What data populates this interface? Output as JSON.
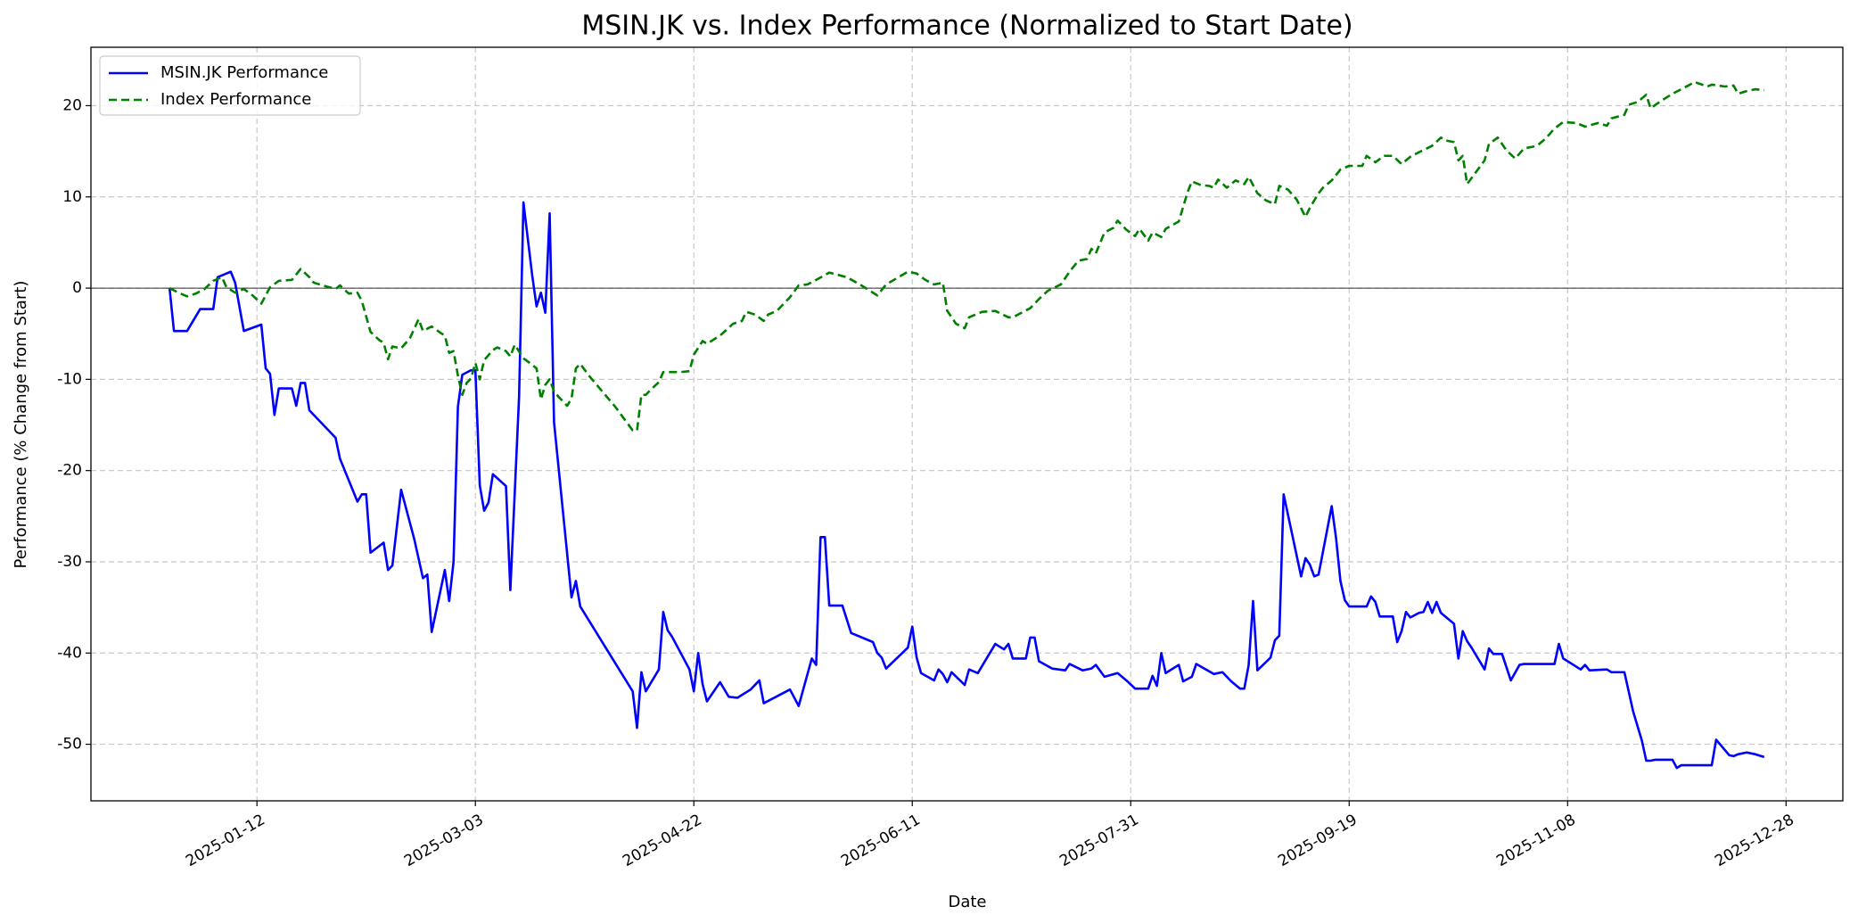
{
  "chart_data": {
    "type": "line",
    "title": "MSIN.JK vs. Index Performance (Normalized to Start Date)",
    "xlabel": "Date",
    "ylabel": "Performance (% Change from Start)",
    "xlim": [
      "2024-12-05",
      "2026-01-10"
    ],
    "xticks": [
      "2025-01-12",
      "2025-03-03",
      "2025-04-22",
      "2025-06-11",
      "2025-07-31",
      "2025-09-19",
      "2025-11-08",
      "2025-12-28"
    ],
    "ylim": [
      -56.2,
      26.4
    ],
    "yticks": [
      -50,
      -40,
      -30,
      -20,
      -10,
      0,
      10,
      20
    ],
    "grid": true,
    "hline": 0,
    "legend": "upper left",
    "series": [
      {
        "name": "MSIN.JK Performance",
        "color": "#0000ff",
        "linestyle": "solid",
        "x": [
          "2024-12-23",
          "2024-12-24",
          "2024-12-27",
          "2024-12-30",
          "2025-01-02",
          "2025-01-03",
          "2025-01-06",
          "2025-01-07",
          "2025-01-09",
          "2025-01-13",
          "2025-01-14",
          "2025-01-15",
          "2025-01-16",
          "2025-01-17",
          "2025-01-20",
          "2025-01-21",
          "2025-01-22",
          "2025-01-23",
          "2025-01-24",
          "2025-01-30",
          "2025-01-31",
          "2025-02-04",
          "2025-02-05",
          "2025-02-06",
          "2025-02-07",
          "2025-02-10",
          "2025-02-11",
          "2025-02-12",
          "2025-02-14",
          "2025-02-17",
          "2025-02-19",
          "2025-02-20",
          "2025-02-21",
          "2025-02-24",
          "2025-02-25",
          "2025-02-26",
          "2025-02-27",
          "2025-02-28",
          "2025-03-02",
          "2025-03-03",
          "2025-03-04",
          "2025-03-05",
          "2025-03-06",
          "2025-03-07",
          "2025-03-10",
          "2025-03-11",
          "2025-03-13",
          "2025-03-14",
          "2025-03-16",
          "2025-03-17",
          "2025-03-18",
          "2025-03-19",
          "2025-03-20",
          "2025-03-21",
          "2025-03-25",
          "2025-03-26",
          "2025-03-27",
          "2025-04-08",
          "2025-04-09",
          "2025-04-10",
          "2025-04-11",
          "2025-04-14",
          "2025-04-15",
          "2025-04-16",
          "2025-04-17",
          "2025-04-21",
          "2025-04-22",
          "2025-04-23",
          "2025-04-24",
          "2025-04-25",
          "2025-04-28",
          "2025-04-30",
          "2025-05-02",
          "2025-05-05",
          "2025-05-07",
          "2025-05-08",
          "2025-05-14",
          "2025-05-16",
          "2025-05-19",
          "2025-05-20",
          "2025-05-21",
          "2025-05-22",
          "2025-05-23",
          "2025-05-26",
          "2025-05-28",
          "2025-06-02",
          "2025-06-03",
          "2025-06-04",
          "2025-06-05",
          "2025-06-10",
          "2025-06-11",
          "2025-06-12",
          "2025-06-13",
          "2025-06-16",
          "2025-06-17",
          "2025-06-18",
          "2025-06-19",
          "2025-06-20",
          "2025-06-23",
          "2025-06-24",
          "2025-06-26",
          "2025-06-30",
          "2025-07-02",
          "2025-07-03",
          "2025-07-04",
          "2025-07-07",
          "2025-07-08",
          "2025-07-09",
          "2025-07-10",
          "2025-07-13",
          "2025-07-16",
          "2025-07-17",
          "2025-07-20",
          "2025-07-22",
          "2025-07-23",
          "2025-07-25",
          "2025-07-28",
          "2025-07-30",
          "2025-08-01",
          "2025-08-04",
          "2025-08-05",
          "2025-08-06",
          "2025-08-07",
          "2025-08-08",
          "2025-08-11",
          "2025-08-12",
          "2025-08-14",
          "2025-08-15",
          "2025-08-19",
          "2025-08-21",
          "2025-08-23",
          "2025-08-25",
          "2025-08-26",
          "2025-08-27",
          "2025-08-28",
          "2025-08-29",
          "2025-09-01",
          "2025-09-02",
          "2025-09-03",
          "2025-09-04",
          "2025-09-08",
          "2025-09-09",
          "2025-09-10",
          "2025-09-11",
          "2025-09-12",
          "2025-09-15",
          "2025-09-16",
          "2025-09-17",
          "2025-09-18",
          "2025-09-19",
          "2025-09-23",
          "2025-09-24",
          "2025-09-25",
          "2025-09-26",
          "2025-09-29",
          "2025-09-30",
          "2025-10-01",
          "2025-10-02",
          "2025-10-03",
          "2025-10-05",
          "2025-10-06",
          "2025-10-07",
          "2025-10-08",
          "2025-10-09",
          "2025-10-10",
          "2025-10-13",
          "2025-10-14",
          "2025-10-15",
          "2025-10-16",
          "2025-10-17",
          "2025-10-20",
          "2025-10-21",
          "2025-10-22",
          "2025-10-24",
          "2025-10-26",
          "2025-10-28",
          "2025-10-29",
          "2025-11-05",
          "2025-11-06",
          "2025-11-07",
          "2025-11-11",
          "2025-11-12",
          "2025-11-13",
          "2025-11-17",
          "2025-11-18",
          "2025-11-21",
          "2025-11-23",
          "2025-11-25",
          "2025-11-26",
          "2025-11-27",
          "2025-11-28",
          "2025-12-02",
          "2025-12-03",
          "2025-12-04",
          "2025-12-11",
          "2025-12-12",
          "2025-12-15",
          "2025-12-16",
          "2025-12-17",
          "2025-12-19",
          "2025-12-21",
          "2025-12-23"
        ],
        "values": [
          0,
          -4.7,
          -4.7,
          -2.3,
          -2.3,
          1.2,
          1.8,
          0.6,
          -4.7,
          -4.0,
          -8.8,
          -9.4,
          -13.9,
          -11.0,
          -11.0,
          -12.9,
          -10.4,
          -10.4,
          -13.4,
          -16.4,
          -18.7,
          -23.4,
          -22.6,
          -22.6,
          -29.0,
          -27.9,
          -30.9,
          -30.4,
          -22.1,
          -27.5,
          -31.8,
          -31.4,
          -37.7,
          -30.9,
          -34.3,
          -30.0,
          -13.0,
          -9.5,
          -9.0,
          -9.0,
          -21.6,
          -24.4,
          -23.5,
          -20.4,
          -21.7,
          -33.1,
          -11.9,
          9.4,
          1.4,
          -2.0,
          -0.5,
          -2.7,
          8.2,
          -14.7,
          -33.9,
          -32.1,
          -34.9,
          -44.2,
          -48.2,
          -42.1,
          -44.2,
          -41.8,
          -35.5,
          -37.5,
          -38.2,
          -41.8,
          -44.2,
          -40.0,
          -43.4,
          -45.3,
          -43.2,
          -44.8,
          -44.9,
          -44.0,
          -43.0,
          -45.5,
          -44.0,
          -45.8,
          -40.6,
          -41.3,
          -27.3,
          -27.3,
          -34.8,
          -34.8,
          -37.8,
          -38.8,
          -40.0,
          -40.5,
          -41.7,
          -39.4,
          -37.1,
          -40.5,
          -42.2,
          -43.0,
          -41.8,
          -42.3,
          -43.2,
          -42.1,
          -43.5,
          -41.8,
          -42.2,
          -39.0,
          -39.6,
          -39.0,
          -40.6,
          -40.6,
          -38.3,
          -38.3,
          -40.9,
          -41.7,
          -41.9,
          -41.2,
          -41.9,
          -41.7,
          -41.3,
          -42.6,
          -42.2,
          -43.0,
          -43.9,
          -43.9,
          -42.5,
          -43.6,
          -40.0,
          -42.2,
          -41.3,
          -43.1,
          -42.6,
          -41.2,
          -42.3,
          -42.1,
          -43.1,
          -43.9,
          -43.9,
          -41.3,
          -34.3,
          -41.9,
          -40.5,
          -38.6,
          -38.1,
          -22.6,
          -31.6,
          -29.6,
          -30.3,
          -31.6,
          -31.4,
          -23.9,
          -27.4,
          -32.1,
          -34.2,
          -34.9,
          -34.9,
          -33.8,
          -34.4,
          -36.0,
          -36.0,
          -38.8,
          -37.6,
          -35.5,
          -36.1,
          -35.6,
          -35.5,
          -34.4,
          -35.6,
          -34.4,
          -35.6,
          -36.8,
          -40.6,
          -37.6,
          -38.7,
          -39.4,
          -41.8,
          -39.5,
          -40.1,
          -40.1,
          -43.0,
          -41.3,
          -41.2,
          -41.2,
          -39.0,
          -40.6,
          -41.8,
          -41.3,
          -41.9,
          -41.8,
          -42.1,
          -42.1,
          -46.4,
          -49.6,
          -51.8,
          -51.8,
          -51.7,
          -51.7,
          -52.6,
          -52.3,
          -52.3,
          -49.5,
          -51.2,
          -51.3,
          -51.1,
          -50.9,
          -51.1,
          -51.4
        ]
      },
      {
        "name": "Index Performance",
        "color": "#008000",
        "linestyle": "dashed",
        "x": [
          "2024-12-23",
          "2024-12-25",
          "2024-12-27",
          "2024-12-29",
          "2024-12-31",
          "2025-01-02",
          "2025-01-04",
          "2025-01-05",
          "2025-01-07",
          "2025-01-09",
          "2025-01-11",
          "2025-01-13",
          "2025-01-15",
          "2025-01-17",
          "2025-01-20",
          "2025-01-22",
          "2025-01-24",
          "2025-01-25",
          "2025-01-27",
          "2025-01-30",
          "2025-01-31",
          "2025-02-02",
          "2025-02-04",
          "2025-02-05",
          "2025-02-07",
          "2025-02-09",
          "2025-02-10",
          "2025-02-11",
          "2025-02-12",
          "2025-02-14",
          "2025-02-16",
          "2025-02-18",
          "2025-02-19",
          "2025-02-21",
          "2025-02-23",
          "2025-02-24",
          "2025-02-25",
          "2025-02-26",
          "2025-02-27",
          "2025-02-28",
          "2025-03-01",
          "2025-03-02",
          "2025-03-03",
          "2025-03-04",
          "2025-03-05",
          "2025-03-07",
          "2025-03-08",
          "2025-03-10",
          "2025-03-11",
          "2025-03-12",
          "2025-03-14",
          "2025-03-16",
          "2025-03-17",
          "2025-03-18",
          "2025-03-19",
          "2025-03-20",
          "2025-03-21",
          "2025-03-22",
          "2025-03-24",
          "2025-03-25",
          "2025-03-26",
          "2025-03-27",
          "2025-03-29",
          "2025-04-04",
          "2025-04-08",
          "2025-04-09",
          "2025-04-10",
          "2025-04-11",
          "2025-04-12",
          "2025-04-14",
          "2025-04-15",
          "2025-04-17",
          "2025-04-19",
          "2025-04-21",
          "2025-04-22",
          "2025-04-24",
          "2025-04-25",
          "2025-04-28",
          "2025-05-01",
          "2025-05-03",
          "2025-05-04",
          "2025-05-06",
          "2025-05-08",
          "2025-05-09",
          "2025-05-11",
          "2025-05-14",
          "2025-05-16",
          "2025-05-18",
          "2025-05-20",
          "2025-05-23",
          "2025-05-27",
          "2025-05-30",
          "2025-06-03",
          "2025-06-05",
          "2025-06-10",
          "2025-06-12",
          "2025-06-14",
          "2025-06-16",
          "2025-06-18",
          "2025-06-19",
          "2025-06-21",
          "2025-06-23",
          "2025-06-24",
          "2025-06-27",
          "2025-06-30",
          "2025-07-03",
          "2025-07-04",
          "2025-07-08",
          "2025-07-10",
          "2025-07-12",
          "2025-07-15",
          "2025-07-17",
          "2025-07-19",
          "2025-07-21",
          "2025-07-22",
          "2025-07-23",
          "2025-07-25",
          "2025-07-27",
          "2025-07-28",
          "2025-07-30",
          "2025-08-01",
          "2025-08-02",
          "2025-08-04",
          "2025-08-05",
          "2025-08-07",
          "2025-08-08",
          "2025-08-11",
          "2025-08-13",
          "2025-08-14",
          "2025-08-16",
          "2025-08-18",
          "2025-08-19",
          "2025-08-20",
          "2025-08-22",
          "2025-08-24",
          "2025-08-26",
          "2025-08-27",
          "2025-08-29",
          "2025-08-31",
          "2025-09-02",
          "2025-09-03",
          "2025-09-05",
          "2025-09-07",
          "2025-09-09",
          "2025-09-10",
          "2025-09-12",
          "2025-09-13",
          "2025-09-15",
          "2025-09-17",
          "2025-09-19",
          "2025-09-21",
          "2025-09-22",
          "2025-09-23",
          "2025-09-25",
          "2025-09-27",
          "2025-09-29",
          "2025-10-01",
          "2025-10-03",
          "2025-10-05",
          "2025-10-08",
          "2025-10-10",
          "2025-10-11",
          "2025-10-13",
          "2025-10-14",
          "2025-10-15",
          "2025-10-16",
          "2025-10-18",
          "2025-10-20",
          "2025-10-21",
          "2025-10-23",
          "2025-10-25",
          "2025-10-27",
          "2025-10-29",
          "2025-11-01",
          "2025-11-03",
          "2025-11-05",
          "2025-11-07",
          "2025-11-10",
          "2025-11-12",
          "2025-11-15",
          "2025-11-17",
          "2025-11-18",
          "2025-11-21",
          "2025-11-22",
          "2025-11-24",
          "2025-11-26",
          "2025-11-27",
          "2025-11-29",
          "2025-12-02",
          "2025-12-04",
          "2025-12-06",
          "2025-12-07",
          "2025-12-10",
          "2025-12-11",
          "2025-12-14",
          "2025-12-16",
          "2025-12-17",
          "2025-12-19",
          "2025-12-21",
          "2025-12-23"
        ],
        "values": [
          0,
          -0.5,
          -0.9,
          -0.6,
          -0.1,
          0.8,
          1.2,
          0.1,
          -0.5,
          -0.1,
          -0.8,
          -1.7,
          0.1,
          0.8,
          0.9,
          2.1,
          1.2,
          0.6,
          0.3,
          -0.1,
          0.3,
          -0.6,
          -0.5,
          -1.4,
          -4.8,
          -5.7,
          -6.0,
          -7.8,
          -6.4,
          -6.6,
          -5.5,
          -3.4,
          -4.7,
          -4.2,
          -4.9,
          -5.2,
          -7.1,
          -6.9,
          -9.6,
          -11.7,
          -10.4,
          -9.9,
          -8.2,
          -10.0,
          -7.9,
          -6.8,
          -6.5,
          -6.9,
          -7.5,
          -6.2,
          -7.7,
          -8.4,
          -8.8,
          -12.2,
          -10.6,
          -10.0,
          -11.3,
          -11.9,
          -12.9,
          -12.1,
          -8.8,
          -8.3,
          -9.6,
          -13.0,
          -15.6,
          -15.6,
          -11.7,
          -11.7,
          -11.2,
          -10.3,
          -9.2,
          -9.2,
          -9.2,
          -9.1,
          -7.3,
          -5.8,
          -6.1,
          -5.2,
          -3.9,
          -3.6,
          -2.6,
          -2.9,
          -3.6,
          -2.9,
          -2.5,
          -1.0,
          0.3,
          0.4,
          0.9,
          1.7,
          1.2,
          0.4,
          -0.8,
          0.4,
          1.8,
          1.6,
          0.9,
          0.4,
          0.6,
          -2.5,
          -3.9,
          -4.4,
          -3.2,
          -2.6,
          -2.5,
          -3.2,
          -3.2,
          -2.2,
          -1.2,
          -0.3,
          0.4,
          1.8,
          3.0,
          3.2,
          4.3,
          3.8,
          6.1,
          6.6,
          7.4,
          6.4,
          5.7,
          6.5,
          5.2,
          6.1,
          5.6,
          6.5,
          7.3,
          10.5,
          11.7,
          11.3,
          11.2,
          11.0,
          11.9,
          11.0,
          11.8,
          11.4,
          12.2,
          10.4,
          9.6,
          9.2,
          11.2,
          10.8,
          9.7,
          7.8,
          8.8,
          10.4,
          11.0,
          11.8,
          13.0,
          13.4,
          13.4,
          13.4,
          14.5,
          13.8,
          14.5,
          14.5,
          13.6,
          14.4,
          14.9,
          15.6,
          16.5,
          16.2,
          16.0,
          14.0,
          14.5,
          11.4,
          12.7,
          14.0,
          15.8,
          16.5,
          15.1,
          14.2,
          15.3,
          15.6,
          16.4,
          17.5,
          18.2,
          18.1,
          17.7,
          18.1,
          17.8,
          18.6,
          19.0,
          20.1,
          20.4,
          21.2,
          19.7,
          20.4,
          21.3,
          21.8,
          22.3,
          22.6,
          22.1,
          22.3,
          22.1,
          22.2,
          21.3,
          21.6,
          21.8,
          21.7
        ]
      }
    ]
  }
}
